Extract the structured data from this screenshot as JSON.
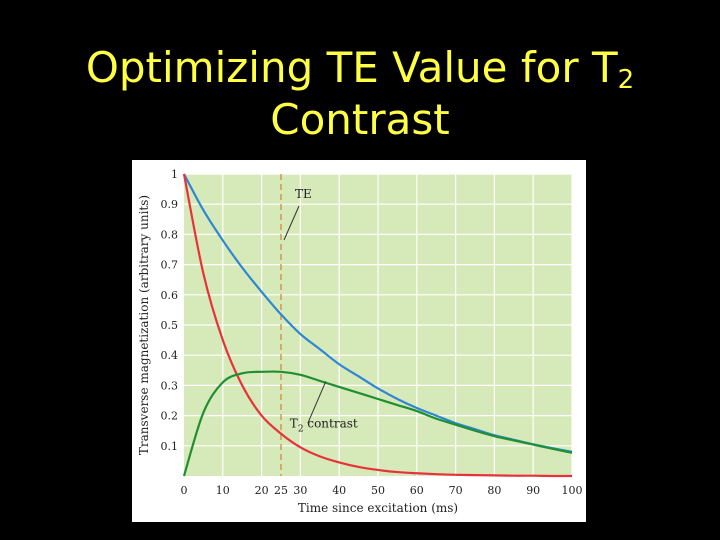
{
  "slide": {
    "title_main": "Optimizing TE Value for T",
    "title_sub": "2",
    "title_line2": "Contrast"
  },
  "colors": {
    "background": "#000000",
    "title": "#ffff44",
    "plot_background": "#d6e9b8",
    "grid": "#ffffff",
    "t2_short": "#e8313a",
    "t2_long": "#2f86d4",
    "contrast": "#1f8f32",
    "te_marker": "#d08a3a"
  },
  "chart_data": {
    "type": "line",
    "xlabel": "Time since excitation (ms)",
    "ylabel": "Transverse magnetization (arbitrary units)",
    "xlim": [
      0,
      100
    ],
    "ylim": [
      0,
      1
    ],
    "x_ticks": [
      0,
      10,
      20,
      30,
      40,
      50,
      60,
      70,
      80,
      90,
      100
    ],
    "x_tick_labels": [
      "0",
      "10",
      "20",
      "25",
      "30",
      "40",
      "50",
      "60",
      "70",
      "80",
      "90",
      "100"
    ],
    "x_tick_label_values": [
      0,
      10,
      20,
      25,
      30,
      40,
      50,
      60,
      70,
      80,
      90,
      100
    ],
    "y_ticks": [
      0.1,
      0.2,
      0.3,
      0.4,
      0.5,
      0.6,
      0.7,
      0.8,
      0.9,
      1.0
    ],
    "y_tick_labels": [
      "0.1",
      "0.2",
      "0.3",
      "0.4",
      "0.5",
      "0.6",
      "0.7",
      "0.8",
      "0.9",
      "1"
    ],
    "grid": true,
    "x": [
      0,
      5,
      10,
      15,
      20,
      25,
      30,
      35,
      40,
      45,
      50,
      55,
      60,
      65,
      70,
      75,
      80,
      85,
      90,
      95,
      100
    ],
    "series": [
      {
        "key": "long_t2",
        "color_key": "t2_long",
        "values": [
          1.0,
          0.88,
          0.78,
          0.69,
          0.61,
          0.535,
          0.47,
          0.42,
          0.37,
          0.33,
          0.29,
          0.255,
          0.225,
          0.2,
          0.175,
          0.155,
          0.135,
          0.12,
          0.105,
          0.092,
          0.08
        ]
      },
      {
        "key": "short_t2",
        "color_key": "t2_short",
        "values": [
          1.0,
          0.67,
          0.45,
          0.3,
          0.2,
          0.14,
          0.095,
          0.065,
          0.045,
          0.03,
          0.02,
          0.013,
          0.009,
          0.006,
          0.004,
          0.003,
          0.002,
          0.001,
          0.001,
          0.0,
          0.0
        ]
      },
      {
        "key": "contrast",
        "color_key": "contrast",
        "values": [
          0.0,
          0.21,
          0.31,
          0.34,
          0.345,
          0.345,
          0.335,
          0.315,
          0.295,
          0.275,
          0.255,
          0.235,
          0.215,
          0.19,
          0.17,
          0.15,
          0.132,
          0.118,
          0.104,
          0.09,
          0.077
        ]
      }
    ],
    "te_marker": {
      "x": 25,
      "label": "TE"
    },
    "annotations": [
      {
        "text_main": "T",
        "text_sub": "2",
        "text_rest": " contrast",
        "target_x": 35,
        "target_y": 0.3
      }
    ]
  }
}
